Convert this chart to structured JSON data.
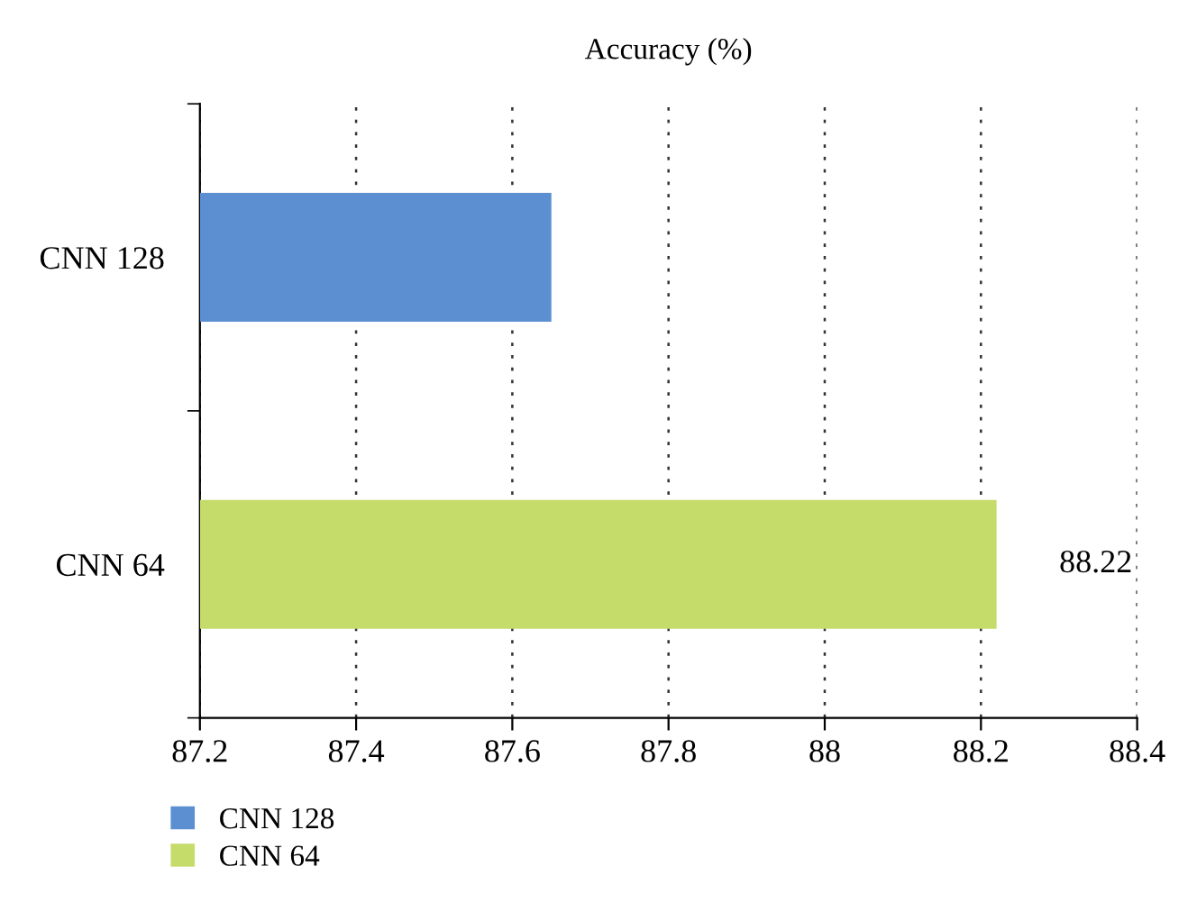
{
  "chart_data": {
    "type": "bar",
    "orientation": "horizontal",
    "title": "Accuracy (%)",
    "categories": [
      "CNN 128",
      "CNN 64"
    ],
    "series": [
      {
        "name": "CNN 128",
        "color": "#5b8fd2",
        "values": [
          87.65,
          null
        ],
        "value_labels": [
          null,
          null
        ]
      },
      {
        "name": "CNN 64",
        "color": "#c5dc6a",
        "values": [
          null,
          88.22
        ],
        "value_labels": [
          null,
          "88.22"
        ]
      }
    ],
    "xlim": [
      87.2,
      88.4
    ],
    "xticks": [
      87.2,
      87.4,
      87.6,
      87.8,
      88,
      88.2,
      88.4
    ],
    "grid": "x",
    "legend": "bottom left"
  }
}
